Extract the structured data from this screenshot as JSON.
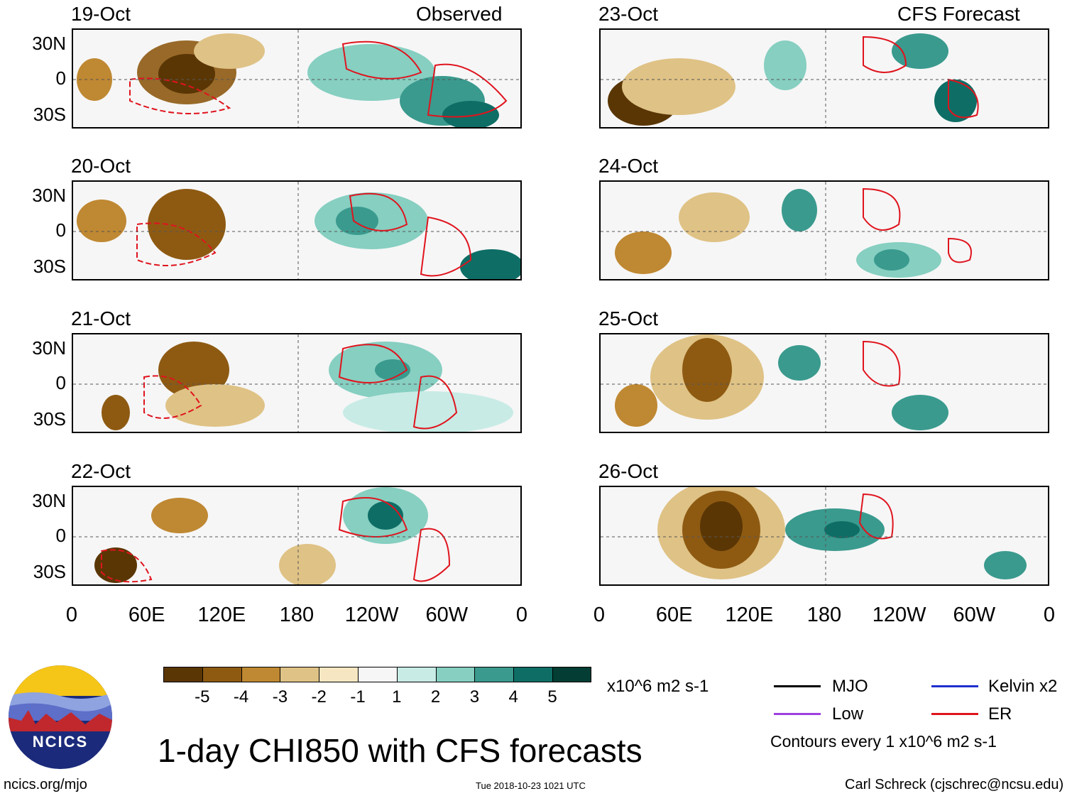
{
  "observed_title": "Observed",
  "forecast_title": "CFS Forecast",
  "observed_dates": [
    "19-Oct",
    "20-Oct",
    "21-Oct",
    "22-Oct"
  ],
  "forecast_dates": [
    "23-Oct",
    "24-Oct",
    "25-Oct",
    "26-Oct"
  ],
  "lat_labels": [
    "30N",
    "0",
    "30S"
  ],
  "lon_labels": [
    "0",
    "60E",
    "120E",
    "180",
    "120W",
    "60W",
    "0"
  ],
  "colorbar": {
    "colors": [
      "#5a3605",
      "#8e5a12",
      "#bf8832",
      "#dfc285",
      "#f6e7c2",
      "#f6f6f6",
      "#c8ebe5",
      "#86cfc1",
      "#3a9a8e",
      "#0e6e66",
      "#033d33"
    ],
    "labels": [
      "-5",
      "-4",
      "-3",
      "-2",
      "-1",
      "1",
      "2",
      "3",
      "4",
      "5"
    ],
    "units": "x10^6 m2 s-1"
  },
  "legend": {
    "mjo": "MJO",
    "kelvin": "Kelvin x2",
    "low": "Low",
    "er": "ER",
    "colors": {
      "mjo": "#000000",
      "kelvin": "#1f2fd0",
      "low": "#a040e0",
      "er": "#e0141e"
    },
    "contours_note": "Contours every 1 x10^6 m2 s-1"
  },
  "main_title": "1-day CHI850 with CFS forecasts",
  "logo_text": "NCICS",
  "footer": {
    "url": "ncics.org/mjo",
    "timestamp": "Tue 2018-10-23 1021 UTC",
    "credit": "Carl Schreck (cjschrec@ncsu.edu)"
  }
}
